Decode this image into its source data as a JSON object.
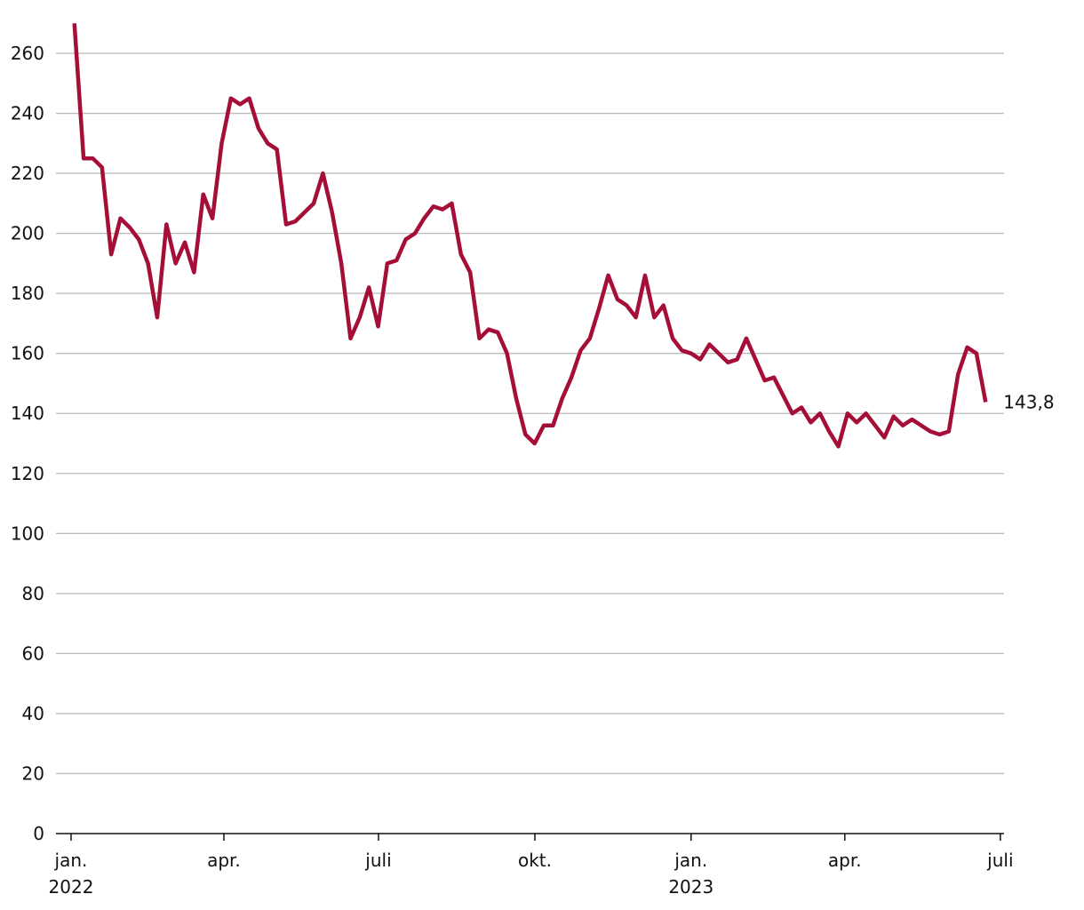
{
  "chart_data": {
    "type": "line",
    "values": [
      270,
      225,
      225,
      222,
      193,
      205,
      202,
      198,
      190,
      172,
      203,
      190,
      197,
      187,
      213,
      205,
      230,
      245,
      243,
      245,
      235,
      230,
      228,
      203,
      204,
      207,
      210,
      220,
      207,
      190,
      165,
      172,
      182,
      169,
      190,
      191,
      198,
      200,
      205,
      209,
      208,
      210,
      193,
      187,
      165,
      168,
      167,
      160,
      145,
      133,
      130,
      136,
      136,
      145,
      152,
      161,
      165,
      175,
      186,
      178,
      176,
      172,
      186,
      172,
      176,
      165,
      161,
      160,
      158,
      163,
      160,
      157,
      158,
      165,
      158,
      151,
      152,
      146,
      140,
      142,
      137,
      140,
      134,
      129,
      140,
      137,
      140,
      136,
      132,
      139,
      136,
      138,
      136,
      134,
      133,
      134,
      153,
      162,
      160,
      143.8
    ],
    "last_value_label": "143,8",
    "color": "#a50e36",
    "xlim": [
      -2,
      101
    ],
    "xticks": [
      {
        "value": -0.36,
        "label": "jan.\n2022"
      },
      {
        "value": 16.24,
        "label": "apr."
      },
      {
        "value": 33.04,
        "label": "juli"
      },
      {
        "value": 50.03,
        "label": "okt."
      },
      {
        "value": 67.0,
        "label": "jan.\n2023"
      },
      {
        "value": 83.7,
        "label": "apr."
      },
      {
        "value": 100.6,
        "label": "juli"
      }
    ],
    "ylim": [
      0,
      260
    ],
    "yticks": [
      0,
      20,
      40,
      60,
      80,
      100,
      120,
      140,
      160,
      180,
      200,
      220,
      240,
      260
    ],
    "grid": true
  }
}
